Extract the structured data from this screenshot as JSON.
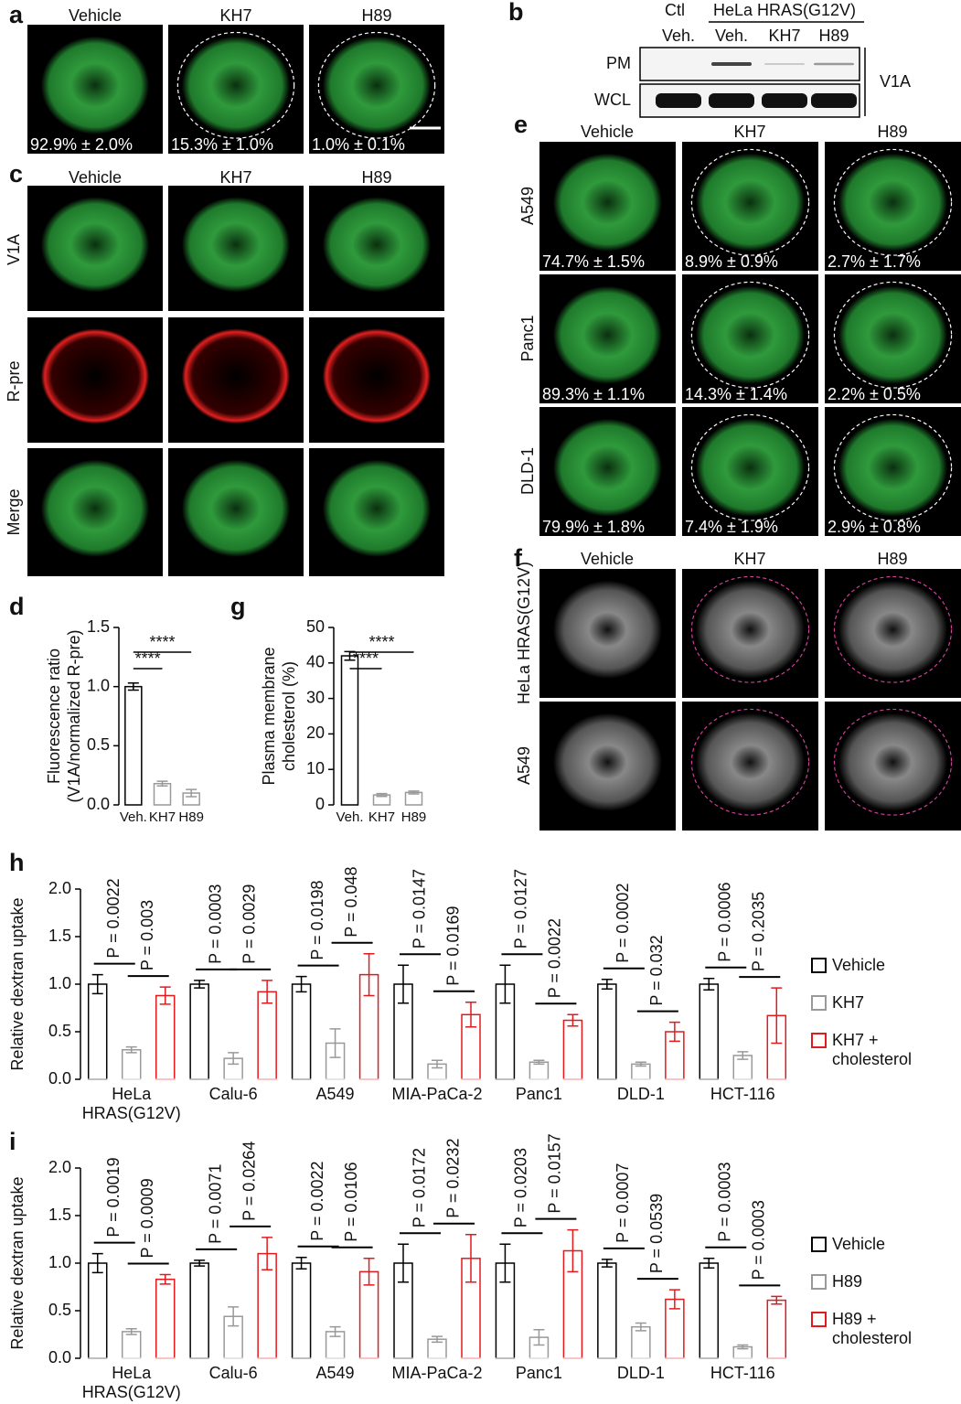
{
  "panel_labels": [
    "a",
    "b",
    "c",
    "d",
    "e",
    "f",
    "g",
    "h",
    "i"
  ],
  "panel_a": {
    "columns": [
      "Vehicle",
      "KH7",
      "H89"
    ],
    "percentages": [
      "92.9% ± 2.0%",
      "15.3% ± 1.0%",
      "1.0% ± 0.1%"
    ]
  },
  "panel_b": {
    "control": "Ctl",
    "group": "HeLa HRAS(G12V)",
    "lanes": [
      "Veh.",
      "Veh.",
      "KH7",
      "H89"
    ],
    "rows": [
      "PM",
      "WCL"
    ],
    "antibody": "V1A"
  },
  "panel_c": {
    "columns": [
      "Vehicle",
      "KH7",
      "H89"
    ],
    "rows": [
      "V1A",
      "R-pre",
      "Merge"
    ]
  },
  "panel_e": {
    "columns": [
      "Vehicle",
      "KH7",
      "H89"
    ],
    "rows": [
      "A549",
      "Panc1",
      "DLD-1"
    ],
    "percentages": [
      [
        "74.7% ± 1.5%",
        "8.9% ± 0.9%",
        "2.7% ± 1.7%"
      ],
      [
        "89.3% ± 1.1%",
        "14.3% ± 1.4%",
        "2.2% ± 0.5%"
      ],
      [
        "79.9% ± 1.8%",
        "7.4% ± 1.9%",
        "2.9% ± 0.8%"
      ]
    ]
  },
  "panel_f": {
    "columns": [
      "Vehicle",
      "KH7",
      "H89"
    ],
    "rows": [
      "HeLa HRAS(G12V)",
      "A549"
    ]
  },
  "chart_data": [
    {
      "type": "bar",
      "ylabel": [
        "Fluorescence ratio",
        "(V1A/normalized R-pre)"
      ],
      "categories": [
        "Veh.",
        "KH7",
        "H89"
      ],
      "values": [
        1.0,
        0.18,
        0.1
      ],
      "errors": [
        0.03,
        0.02,
        0.03
      ],
      "colors": [
        "#000000",
        "#999999",
        "#999999"
      ],
      "ylim": [
        0,
        1.5
      ],
      "yticks": [
        {
          "value": 0,
          "label": "0.0"
        },
        {
          "value": 0.5,
          "label": "0.5"
        },
        {
          "value": 1,
          "label": "1.0"
        },
        {
          "value": 1.5,
          "label": "1.5"
        }
      ],
      "annotations": [
        "****",
        "****"
      ]
    },
    {
      "type": "bar",
      "ylabel": [
        "Plasma membrane",
        "cholesterol (%)"
      ],
      "categories": [
        "Veh.",
        "KH7",
        "H89"
      ],
      "values": [
        42,
        2.8,
        3.5
      ],
      "errors": [
        1.2,
        0.4,
        0.4
      ],
      "colors": [
        "#000000",
        "#999999",
        "#999999"
      ],
      "ylim": [
        0,
        50
      ],
      "yticks": [
        0,
        10,
        20,
        30,
        40,
        50
      ],
      "annotations": [
        "****",
        "****"
      ]
    },
    {
      "type": "grouped_bar",
      "ylabel": "Relative dextran uptake",
      "categories": [
        "HeLa HRAS(G12V)",
        "Calu-6",
        "A549",
        "MIA-PaCa-2",
        "Panc1",
        "DLD-1",
        "HCT-116"
      ],
      "series": [
        {
          "name": "Vehicle",
          "color": "#000000",
          "values": [
            1.0,
            1.0,
            1.0,
            1.0,
            1.0,
            1.0,
            1.0
          ],
          "errors": [
            0.1,
            0.04,
            0.08,
            0.2,
            0.2,
            0.05,
            0.06
          ]
        },
        {
          "name": "KH7",
          "color": "#999999",
          "values": [
            0.31,
            0.22,
            0.38,
            0.16,
            0.18,
            0.16,
            0.25
          ],
          "errors": [
            0.03,
            0.06,
            0.15,
            0.04,
            0.02,
            0.02,
            0.04
          ]
        },
        {
          "name": "KH7 + cholesterol",
          "color": "#e31a1c",
          "values": [
            0.88,
            0.92,
            1.1,
            0.68,
            0.62,
            0.5,
            0.67
          ],
          "errors": [
            0.09,
            0.12,
            0.22,
            0.13,
            0.06,
            0.1,
            0.29
          ]
        }
      ],
      "comparisons": [
        [
          "P = 0.0022",
          "P = 0.003"
        ],
        [
          "P = 0.0003",
          "P = 0.0029"
        ],
        [
          "P = 0.0198",
          "P = 0.048"
        ],
        [
          "P = 0.0147",
          "P = 0.0169"
        ],
        [
          "P = 0.0127",
          "P = 0.0022"
        ],
        [
          "P = 0.0002",
          "P = 0.032"
        ],
        [
          "P = 0.0006",
          "P = 0.2035"
        ]
      ],
      "ylim": [
        0,
        2
      ],
      "yticks": [
        {
          "value": 0,
          "label": "0.0"
        },
        {
          "value": 0.5,
          "label": "0.5"
        },
        {
          "value": 1,
          "label": "1.0"
        },
        {
          "value": 1.5,
          "label": "1.5"
        },
        {
          "value": 2,
          "label": "2.0"
        }
      ]
    },
    {
      "type": "grouped_bar",
      "ylabel": "Relative dextran uptake",
      "categories": [
        "HeLa HRAS(G12V)",
        "Calu-6",
        "A549",
        "MIA-PaCa-2",
        "Panc1",
        "DLD-1",
        "HCT-116"
      ],
      "series": [
        {
          "name": "Vehicle",
          "color": "#000000",
          "values": [
            1.0,
            1.0,
            1.0,
            1.0,
            1.0,
            1.0,
            1.0
          ],
          "errors": [
            0.1,
            0.03,
            0.06,
            0.2,
            0.2,
            0.04,
            0.05
          ]
        },
        {
          "name": "H89",
          "color": "#999999",
          "values": [
            0.28,
            0.44,
            0.28,
            0.2,
            0.22,
            0.33,
            0.12
          ],
          "errors": [
            0.03,
            0.1,
            0.05,
            0.03,
            0.08,
            0.04,
            0.02
          ]
        },
        {
          "name": "H89 + cholesterol",
          "color": "#e31a1c",
          "values": [
            0.83,
            1.1,
            0.91,
            1.05,
            1.13,
            0.62,
            0.61
          ],
          "errors": [
            0.05,
            0.17,
            0.14,
            0.25,
            0.22,
            0.1,
            0.04
          ]
        }
      ],
      "comparisons": [
        [
          "P = 0.0019",
          "P = 0.0009"
        ],
        [
          "P = 0.0071",
          "P = 0.0264"
        ],
        [
          "P = 0.0022",
          "P = 0.0106"
        ],
        [
          "P = 0.0172",
          "P = 0.0232"
        ],
        [
          "P = 0.0203",
          "P = 0.0157"
        ],
        [
          "P = 0.0007",
          "P = 0.0539"
        ],
        [
          "P = 0.0003",
          "P = 0.0003"
        ]
      ],
      "ylim": [
        0,
        2
      ],
      "yticks": [
        {
          "value": 0,
          "label": "0.0"
        },
        {
          "value": 0.5,
          "label": "0.5"
        },
        {
          "value": 1,
          "label": "1.0"
        },
        {
          "value": 1.5,
          "label": "1.5"
        },
        {
          "value": 2,
          "label": "2.0"
        }
      ]
    }
  ]
}
